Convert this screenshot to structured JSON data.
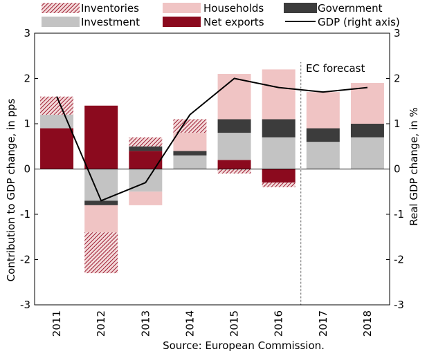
{
  "chart_data": {
    "type": "bar",
    "stacked": true,
    "categories": [
      "2011",
      "2012",
      "2013",
      "2014",
      "2015",
      "2016",
      "2017",
      "2018"
    ],
    "series": [
      {
        "name": "Inventories",
        "values": [
          0.4,
          -0.9,
          0.2,
          0.3,
          -0.1,
          -0.1,
          0.0,
          0.0
        ],
        "color": "#9e1b32",
        "pattern": "diagonal-hatch"
      },
      {
        "name": "Households",
        "values": [
          0.0,
          -0.6,
          -0.3,
          0.4,
          1.0,
          1.1,
          0.8,
          0.9
        ],
        "color": "#f0c4c4"
      },
      {
        "name": "Government",
        "values": [
          0.0,
          -0.1,
          0.1,
          0.1,
          0.3,
          0.4,
          0.3,
          0.3
        ],
        "color": "#3c3c3c"
      },
      {
        "name": "Investment",
        "values": [
          0.3,
          -0.7,
          -0.5,
          0.3,
          0.6,
          0.7,
          0.6,
          0.7
        ],
        "color": "#c3c3c3"
      },
      {
        "name": "Net exports",
        "values": [
          0.9,
          1.4,
          0.4,
          0.0,
          0.2,
          -0.3,
          0.0,
          0.0
        ],
        "color": "#8b0a1e"
      }
    ],
    "line": {
      "name": "GDP (right axis)",
      "values": [
        1.6,
        -0.7,
        -0.3,
        1.2,
        2.0,
        1.8,
        1.7,
        1.8
      ],
      "color": "#000000"
    },
    "ylabel": "Contribution to GDP change, in pps",
    "y2label": "Real GDP change, in %",
    "ylim": [
      -3,
      3
    ],
    "y2lim": [
      -3,
      3
    ],
    "yticks": [
      "3",
      "2",
      "1",
      "0",
      "-1",
      "-2",
      "-3"
    ],
    "y2ticks": [
      "3",
      "2",
      "1",
      "0",
      "-1",
      "-2",
      "-3"
    ],
    "forecast_label": "EC forecast",
    "forecast_from": "2017",
    "source": "Source: European Commission.",
    "legend_position": "top",
    "grid": false
  }
}
